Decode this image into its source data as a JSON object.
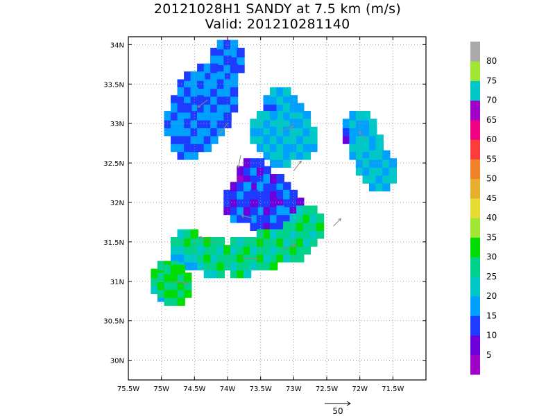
{
  "title": "20121028H1 SANDY at 7.5 km (m/s)",
  "subtitle": "Valid: 201210281140",
  "chart_data": {
    "type": "heatmap",
    "title": "20121028H1 SANDY at 7.5 km (m/s)",
    "subtitle": "Valid: 201210281140",
    "xlim": [
      -75.5,
      -71.0
    ],
    "ylim": [
      29.75,
      34.1
    ],
    "x_ticks": [
      -75.5,
      -75,
      -74.5,
      -74,
      -73.5,
      -73,
      -72.5,
      -72,
      -71.5
    ],
    "x_tick_labels": [
      "75.5W",
      "75W",
      "74.5W",
      "74W",
      "73.5W",
      "73W",
      "72.5W",
      "72W",
      "71.5W"
    ],
    "y_ticks": [
      30,
      30.5,
      31,
      31.5,
      32,
      32.5,
      33,
      33.5,
      34
    ],
    "y_tick_labels": [
      "30N",
      "30.5N",
      "31N",
      "31.5N",
      "32N",
      "32.5N",
      "33N",
      "33.5N",
      "34N"
    ],
    "grid": true,
    "colorbar": {
      "levels": [
        0,
        5,
        10,
        15,
        20,
        25,
        30,
        35,
        40,
        45,
        50,
        55,
        60,
        65,
        70,
        75,
        80,
        85
      ],
      "labels": [
        "5",
        "10",
        "15",
        "20",
        "25",
        "30",
        "35",
        "40",
        "45",
        "50",
        "55",
        "60",
        "65",
        "70",
        "75",
        "80"
      ],
      "colors": [
        "#a000c8",
        "#6e00dc",
        "#1e3cff",
        "#00a0ff",
        "#00c8c8",
        "#00d28c",
        "#00dc00",
        "#a0e632",
        "#e6dc32",
        "#e6af2d",
        "#f08228",
        "#fa3c3c",
        "#f00082",
        "#a000c8",
        "#00c8c8",
        "#a0e632",
        "#aaaaaa"
      ]
    },
    "vector_key": {
      "label": "50",
      "value": 50
    },
    "regions": [
      {
        "name": "north",
        "cells": [
          [
            -74.0,
            33.8
          ],
          [
            -74.1,
            33.6
          ],
          [
            -74.3,
            33.5
          ],
          [
            -74.5,
            33.4
          ],
          [
            -74.6,
            33.2
          ],
          [
            -74.7,
            33.0
          ],
          [
            -74.6,
            32.8
          ],
          [
            -74.4,
            32.9
          ],
          [
            -74.2,
            33.1
          ],
          [
            -74.1,
            33.3
          ]
        ],
        "mean_speed": 15
      },
      {
        "name": "northeast",
        "cells": [
          [
            -73.2,
            33.2
          ],
          [
            -73.0,
            33.0
          ],
          [
            -73.4,
            32.9
          ],
          [
            -73.2,
            32.7
          ],
          [
            -72.9,
            32.8
          ]
        ],
        "mean_speed": 20
      },
      {
        "name": "core",
        "cells": [
          [
            -73.6,
            32.3
          ],
          [
            -73.3,
            32.1
          ],
          [
            -73.1,
            31.9
          ],
          [
            -73.4,
            31.8
          ],
          [
            -73.8,
            32.0
          ]
        ],
        "mean_speed": 12
      },
      {
        "name": "south_band",
        "cells": [
          [
            -74.6,
            31.4
          ],
          [
            -74.2,
            31.3
          ],
          [
            -73.8,
            31.3
          ],
          [
            -73.4,
            31.4
          ],
          [
            -73.0,
            31.5
          ],
          [
            -72.8,
            31.7
          ]
        ],
        "mean_speed": 27
      },
      {
        "name": "east_strip",
        "cells": [
          [
            -72.0,
            32.9
          ],
          [
            -71.9,
            32.7
          ],
          [
            -71.8,
            32.5
          ],
          [
            -71.7,
            32.4
          ]
        ],
        "mean_speed": 20
      },
      {
        "name": "southwest_patch",
        "cells": [
          [
            -74.9,
            31.0
          ],
          [
            -74.8,
            30.95
          ]
        ],
        "mean_speed": 30
      }
    ],
    "vectors": [
      {
        "lon": -74.3,
        "lat": 33.3,
        "u": -8,
        "v": -6
      },
      {
        "lon": -74.0,
        "lat": 33.0,
        "u": -6,
        "v": -8
      },
      {
        "lon": -73.8,
        "lat": 32.6,
        "u": -2,
        "v": -10
      },
      {
        "lon": -73.2,
        "lat": 32.9,
        "u": 10,
        "v": 4
      },
      {
        "lon": -73.0,
        "lat": 32.4,
        "u": 6,
        "v": 8
      },
      {
        "lon": -73.6,
        "lat": 31.8,
        "u": -10,
        "v": 2
      },
      {
        "lon": -74.2,
        "lat": 31.5,
        "u": -12,
        "v": 4
      },
      {
        "lon": -73.8,
        "lat": 31.3,
        "u": 14,
        "v": -1
      },
      {
        "lon": -73.2,
        "lat": 31.4,
        "u": 12,
        "v": 4
      },
      {
        "lon": -72.4,
        "lat": 31.7,
        "u": 6,
        "v": 6
      },
      {
        "lon": -71.9,
        "lat": 32.8,
        "u": -6,
        "v": 6
      },
      {
        "lon": -74.8,
        "lat": 31.0,
        "u": 10,
        "v": -2
      }
    ]
  }
}
